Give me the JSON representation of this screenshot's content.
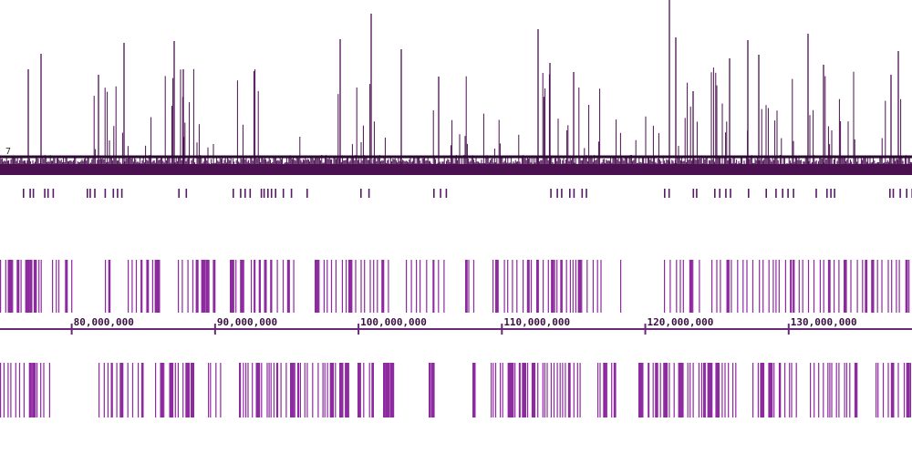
{
  "signal_track": {
    "threshold_label": "7",
    "color": "#4a1050"
  },
  "peaks_track": {
    "color": "#5a1a6a"
  },
  "gene_track_upper": {
    "color": "#8e2aa0"
  },
  "gene_track_lower": {
    "color": "#8e2aa0"
  },
  "ruler": {
    "color": "#6a2a7a",
    "ticks": [
      {
        "value": 80000000,
        "label": "80,000,000"
      },
      {
        "value": 90000000,
        "label": "90,000,000"
      },
      {
        "value": 100000000,
        "label": "100,000,000"
      },
      {
        "value": 110000000,
        "label": "110,000,000"
      },
      {
        "value": 120000000,
        "label": "120,000,000"
      },
      {
        "value": 130000000,
        "label": "130,000,000"
      }
    ]
  }
}
